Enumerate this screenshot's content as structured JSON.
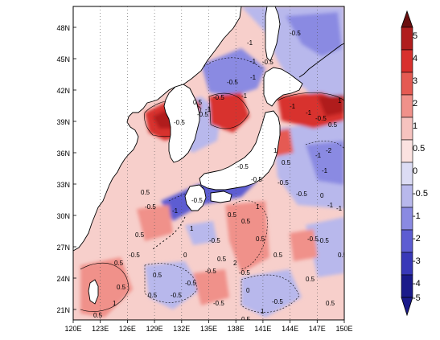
{
  "map": {
    "lon_range": [
      120,
      150
    ],
    "lat_range": [
      20,
      50
    ],
    "lon_ticks": [
      "120E",
      "123E",
      "126E",
      "129E",
      "132E",
      "135E",
      "138E",
      "141E",
      "144E",
      "147E",
      "150E"
    ],
    "lat_ticks": [
      "21N",
      "24N",
      "27N",
      "30N",
      "33N",
      "36N",
      "39N",
      "42N",
      "45N",
      "48N"
    ],
    "gridlines": "dotted meridians",
    "land_color": "#ffffff",
    "coastline_color": "#000000"
  },
  "colorbar": {
    "labels": [
      "5",
      "4",
      "3",
      "2",
      "1",
      "0.5",
      "0",
      "-0.5",
      "-1",
      "-2",
      "-3",
      "-4",
      "-5"
    ],
    "colors": [
      "#6b0f0f",
      "#b01e1e",
      "#d8302d",
      "#e55a52",
      "#f0918a",
      "#f6c3bf",
      "#fbe2e0",
      "#dcdcf4",
      "#b8b8ec",
      "#8a8ae2",
      "#5d5dd2",
      "#3838b8",
      "#1a1a8a"
    ],
    "orientation": "vertical",
    "extend": "both"
  },
  "contour_labels": [
    "-1",
    "-0.5",
    "-1",
    "-0.5",
    "-1",
    "-0.5",
    "-1",
    "-0.5",
    "-0.5",
    "-0.5",
    "-1",
    "0.5",
    "-1",
    "-1",
    "-0.5",
    "0.5",
    "1",
    "-0.5",
    "0.5",
    "1",
    "0.5",
    "0.5",
    "-0.5",
    "0",
    "1",
    "0.5",
    "-0.5",
    "-1",
    "2",
    "-0.5",
    "0.5",
    "-0.5",
    "-0.5",
    "0.5",
    "0",
    "-0.5",
    "-0.5",
    "1",
    "0.5",
    "0.5",
    "-0.5",
    "-1",
    "-2",
    "1",
    "-1",
    "0.5",
    "-0.5",
    "0",
    "-0.5",
    "0.5",
    "1",
    "0.5",
    "-0.5",
    "-0.5",
    "0.5",
    "0.5",
    "-0.5",
    "-0.5",
    "-0.5",
    "-1",
    "0.5",
    "0.5",
    "0.5",
    "-1",
    "0.5"
  ]
}
